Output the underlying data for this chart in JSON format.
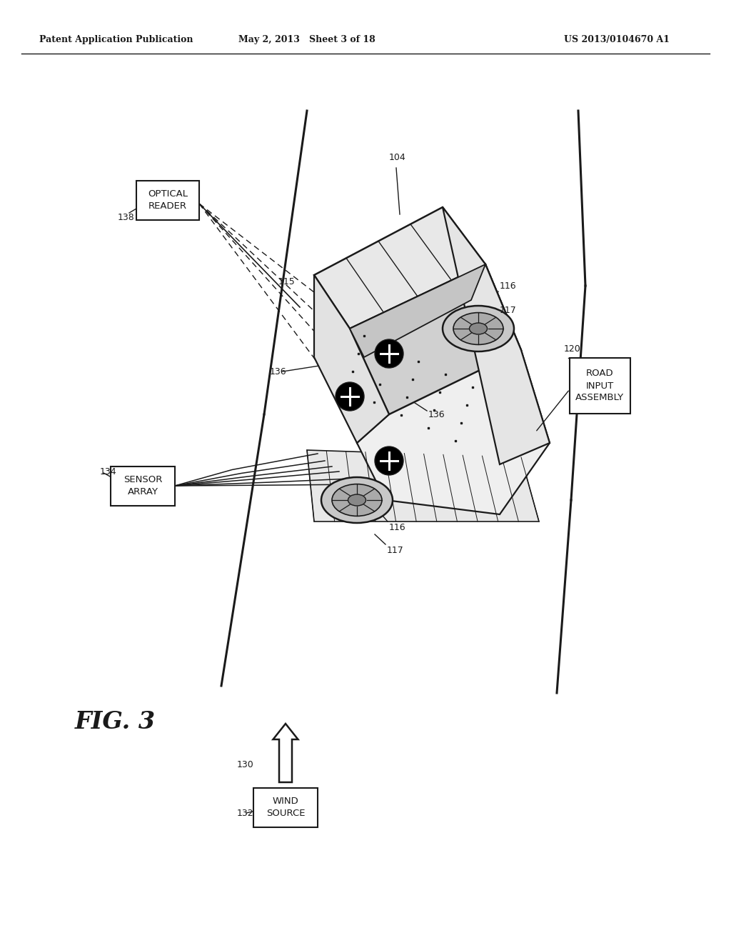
{
  "header_left": "Patent Application Publication",
  "header_middle": "May 2, 2013   Sheet 3 of 18",
  "header_right": "US 2013/0104670 A1",
  "bg": "#ffffff",
  "lc": "#1a1a1a"
}
